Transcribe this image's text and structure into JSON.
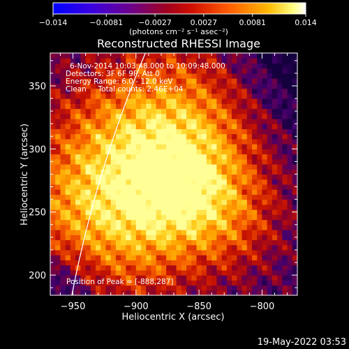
{
  "chart_data": {
    "type": "heatmap",
    "title": "Reconstructed RHESSI Image",
    "xlabel": "Heliocentric X (arcsec)",
    "ylabel": "Heliocentric Y (arcsec)",
    "xlim": [
      -968,
      -772
    ],
    "ylim": [
      184,
      376
    ],
    "x_ticks": [
      -950,
      -900,
      -850,
      -800
    ],
    "x_tick_labels": [
      "−950",
      "−900",
      "−850",
      "−800"
    ],
    "y_ticks": [
      200,
      250,
      300,
      350
    ],
    "y_tick_labels": [
      "200",
      "250",
      "300",
      "350"
    ],
    "colorbar": {
      "range": [
        -0.014,
        0.014
      ],
      "tick_values": [
        -0.014,
        -0.0081,
        -0.0027,
        0.0027,
        0.0081,
        0.014
      ],
      "tick_labels": [
        "−0.014",
        "−0.0081",
        "−0.0027",
        "0.0027",
        "0.0081",
        "0.014"
      ],
      "units_label": "(photons cm⁻² s⁻¹ asec⁻²)",
      "colors": [
        "#0000ff",
        "#5a00c8",
        "#7a0078",
        "#b40000",
        "#ff5a00",
        "#ffb000",
        "#ffff60",
        "#ffffff"
      ]
    },
    "annotations": [
      "6-Nov-2014 10:03:48.000 to 10:09:48.000",
      "Detectors: 3F 6F 9F, Att 0",
      "Energy Range: 6.0 - 12.0 keV",
      "Clean     Total counts: 2.46E+04"
    ],
    "peak_label": "Position of Peak = [-888,287]",
    "peak_position": [
      -888,
      287
    ],
    "limb": true
  },
  "timestamp": "19-May-2022 03:53"
}
